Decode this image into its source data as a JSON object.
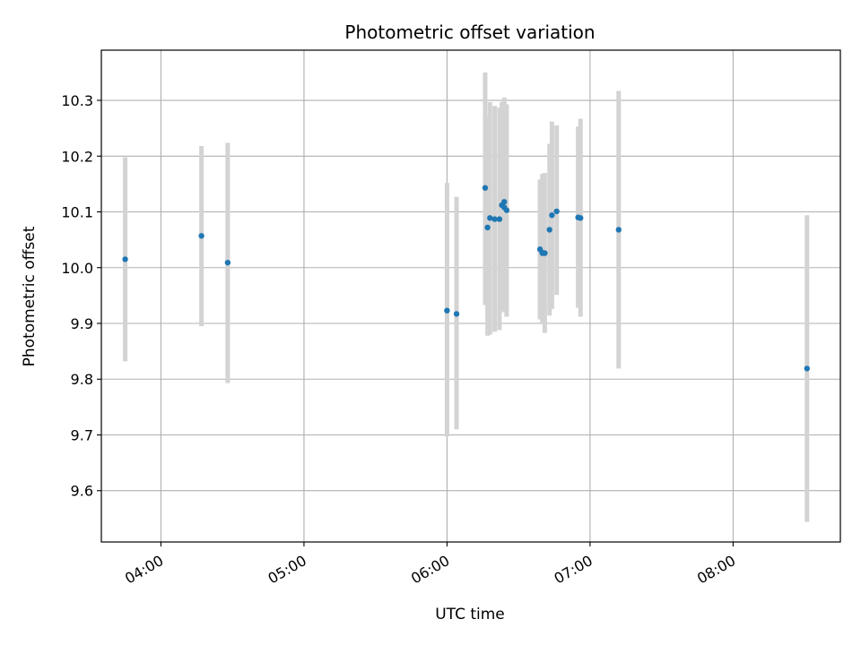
{
  "chart_data": {
    "type": "scatter",
    "title": "Photometric offset variation",
    "xlabel": "UTC time",
    "ylabel": "Photometric offset",
    "x_ticks": [
      "04:00",
      "05:00",
      "06:00",
      "07:00",
      "08:00"
    ],
    "x_tick_values": [
      "04:00",
      "05:00",
      "06:00",
      "07:00",
      "08:00"
    ],
    "y_ticks": [
      "9.6",
      "9.7",
      "9.8",
      "9.9",
      "10.0",
      "10.1",
      "10.2",
      "10.3"
    ],
    "y_tick_values": [
      9.6,
      9.7,
      9.8,
      9.9,
      10.0,
      10.1,
      10.2,
      10.3
    ],
    "xlim": [
      "03:35",
      "08:45"
    ],
    "ylim": [
      9.508,
      10.39
    ],
    "grid": true,
    "colors": {
      "marker": "#1f77b4",
      "errorbar": "#d3d3d3",
      "grid": "#b0b0b0"
    },
    "points": [
      {
        "x": "03:45",
        "y": 10.015,
        "lo": 9.832,
        "hi": 10.198
      },
      {
        "x": "04:17",
        "y": 10.057,
        "lo": 9.895,
        "hi": 10.218
      },
      {
        "x": "04:28",
        "y": 10.009,
        "lo": 9.793,
        "hi": 10.224
      },
      {
        "x": "06:00",
        "y": 9.923,
        "lo": 9.697,
        "hi": 10.152
      },
      {
        "x": "06:04",
        "y": 9.917,
        "lo": 9.71,
        "hi": 10.127
      },
      {
        "x": "06:16",
        "y": 10.143,
        "lo": 9.933,
        "hi": 10.35
      },
      {
        "x": "06:17",
        "y": 10.072,
        "lo": 9.878,
        "hi": 10.27
      },
      {
        "x": "06:18",
        "y": 10.089,
        "lo": 9.88,
        "hi": 10.297
      },
      {
        "x": "06:20",
        "y": 10.087,
        "lo": 9.885,
        "hi": 10.29
      },
      {
        "x": "06:22",
        "y": 10.087,
        "lo": 9.888,
        "hi": 10.287
      },
      {
        "x": "06:23",
        "y": 10.112,
        "lo": 9.923,
        "hi": 10.297
      },
      {
        "x": "06:24",
        "y": 10.118,
        "lo": 9.93,
        "hi": 10.305
      },
      {
        "x": "06:24",
        "y": 10.108,
        "lo": 9.92,
        "hi": 10.295
      },
      {
        "x": "06:25",
        "y": 10.103,
        "lo": 9.912,
        "hi": 10.293
      },
      {
        "x": "06:39",
        "y": 10.033,
        "lo": 9.907,
        "hi": 10.158
      },
      {
        "x": "06:40",
        "y": 10.026,
        "lo": 9.9,
        "hi": 10.162
      },
      {
        "x": "06:40",
        "y": 10.027,
        "lo": 9.915,
        "hi": 10.168
      },
      {
        "x": "06:41",
        "y": 10.026,
        "lo": 9.883,
        "hi": 10.17
      },
      {
        "x": "06:43",
        "y": 10.068,
        "lo": 9.914,
        "hi": 10.222
      },
      {
        "x": "06:44",
        "y": 10.094,
        "lo": 9.926,
        "hi": 10.262
      },
      {
        "x": "06:46",
        "y": 10.101,
        "lo": 9.951,
        "hi": 10.255
      },
      {
        "x": "06:55",
        "y": 10.09,
        "lo": 9.928,
        "hi": 10.253
      },
      {
        "x": "06:56",
        "y": 10.089,
        "lo": 9.912,
        "hi": 10.267
      },
      {
        "x": "07:12",
        "y": 10.068,
        "lo": 9.819,
        "hi": 10.317
      },
      {
        "x": "08:31",
        "y": 9.819,
        "lo": 9.544,
        "hi": 10.094
      }
    ]
  }
}
